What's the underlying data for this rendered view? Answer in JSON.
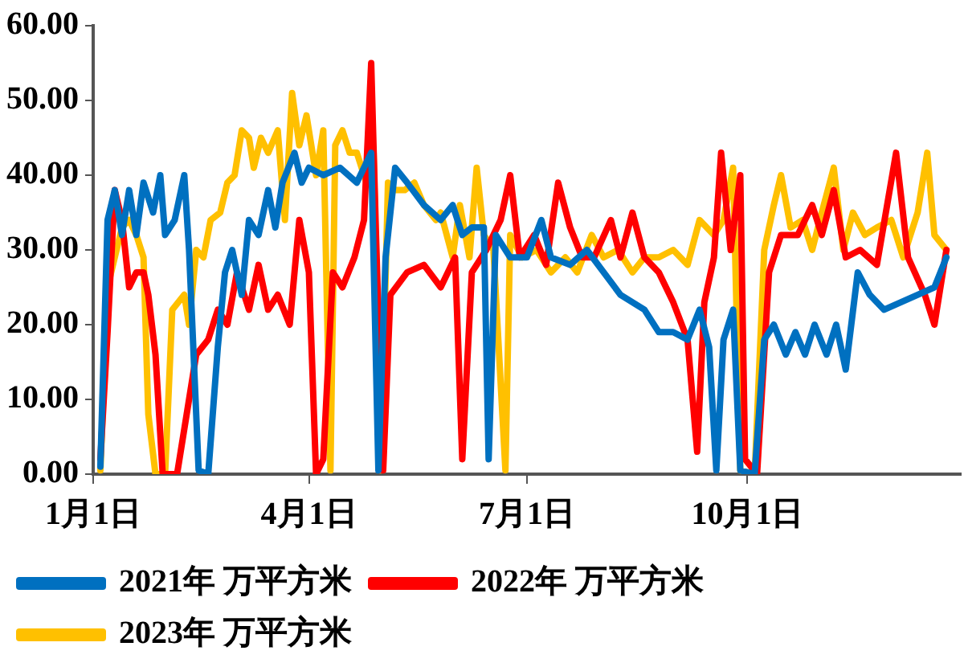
{
  "chart_data": {
    "type": "line",
    "xlim": [
      "--01-01",
      "--12-29"
    ],
    "xticks": [
      {
        "value": "--01-01",
        "label": "1月1日"
      },
      {
        "value": "--04-01",
        "label": "4月1日"
      },
      {
        "value": "--07-01",
        "label": "7月1日"
      },
      {
        "value": "--10-01",
        "label": "10月1日"
      }
    ],
    "ylim": [
      0,
      60
    ],
    "yticks": [
      {
        "value": 0,
        "label": "0.00"
      },
      {
        "value": 10,
        "label": "10.00"
      },
      {
        "value": 20,
        "label": "20.00"
      },
      {
        "value": 30,
        "label": "30.00"
      },
      {
        "value": 40,
        "label": "40.00"
      },
      {
        "value": 50,
        "label": "50.00"
      },
      {
        "value": 60,
        "label": "60.00"
      }
    ],
    "grid": false,
    "legend": "bottom",
    "marker": "none",
    "line_style": "solid",
    "series": [
      {
        "name": "2021年 万平方米",
        "color": "#0070c0",
        "x": [
          "--01-04",
          "--01-07",
          "--01-10",
          "--01-13",
          "--01-16",
          "--01-19",
          "--01-22",
          "--01-26",
          "--01-29",
          "--01-31",
          "--02-04",
          "--02-08",
          "--02-10",
          "--02-14",
          "--02-18",
          "--02-22",
          "--02-25",
          "--02-28",
          "--03-04",
          "--03-07",
          "--03-11",
          "--03-15",
          "--03-18",
          "--03-21",
          "--03-26",
          "--03-29",
          "--04-01",
          "--04-07",
          "--04-14",
          "--04-21",
          "--04-27",
          "--04-30",
          "--05-03",
          "--05-07",
          "--05-12",
          "--05-19",
          "--05-26",
          "--05-31",
          "--06-04",
          "--06-08",
          "--06-13",
          "--06-15",
          "--06-18",
          "--06-24",
          "--07-01",
          "--07-07",
          "--07-11",
          "--07-19",
          "--07-26",
          "--08-02",
          "--08-09",
          "--08-14",
          "--08-19",
          "--08-25",
          "--08-31",
          "--09-06",
          "--09-11",
          "--09-15",
          "--09-18",
          "--09-21",
          "--09-25",
          "--09-28",
          "--10-04",
          "--10-08",
          "--10-12",
          "--10-17",
          "--10-21",
          "--10-25",
          "--10-29",
          "--11-03",
          "--11-07",
          "--11-11",
          "--11-16",
          "--11-21",
          "--11-27",
          "--12-04",
          "--12-11",
          "--12-18",
          "--12-23"
        ],
        "values": [
          1,
          34,
          38,
          32,
          38,
          32,
          39,
          35,
          40,
          32,
          34,
          40,
          30,
          0.5,
          0,
          17,
          27,
          30,
          24,
          34,
          32,
          38,
          33,
          39,
          43,
          39,
          41,
          40,
          41,
          39,
          43,
          0.5,
          29,
          41,
          39,
          36,
          34,
          36,
          32,
          33,
          33,
          2,
          32,
          29,
          29,
          34,
          29,
          28,
          30,
          27,
          24,
          23,
          22,
          19,
          19,
          18,
          22,
          17,
          0.5,
          18,
          22,
          0.5,
          0,
          18,
          20,
          16,
          19,
          16,
          20,
          16,
          20,
          14,
          27,
          24,
          22,
          23,
          24,
          25,
          29
        ]
      },
      {
        "name": "2022年 万平方米",
        "color": "#ff0000",
        "x": [
          "--01-04",
          "--01-07",
          "--01-10",
          "--01-13",
          "--01-16",
          "--01-19",
          "--01-22",
          "--01-24",
          "--01-27",
          "--01-30",
          "--02-05",
          "--02-09",
          "--02-13",
          "--02-18",
          "--02-22",
          "--02-26",
          "--03-02",
          "--03-07",
          "--03-11",
          "--03-15",
          "--03-19",
          "--03-24",
          "--03-28",
          "--04-01",
          "--04-04",
          "--04-07",
          "--04-11",
          "--04-15",
          "--04-20",
          "--04-24",
          "--04-27",
          "--04-29",
          "--05-02",
          "--05-05",
          "--05-12",
          "--05-19",
          "--05-26",
          "--06-01",
          "--06-04",
          "--06-08",
          "--06-14",
          "--06-20",
          "--06-24",
          "--06-28",
          "--07-04",
          "--07-09",
          "--07-14",
          "--07-19",
          "--07-24",
          "--07-29",
          "--08-05",
          "--08-09",
          "--08-14",
          "--08-19",
          "--08-25",
          "--08-31",
          "--09-06",
          "--09-10",
          "--09-13",
          "--09-17",
          "--09-20",
          "--09-24",
          "--09-28",
          "--09-30",
          "--10-05",
          "--10-10",
          "--10-15",
          "--10-22",
          "--10-28",
          "--11-01",
          "--11-06",
          "--11-11",
          "--11-17",
          "--11-24",
          "--12-02",
          "--12-07",
          "--12-14",
          "--12-18",
          "--12-23"
        ],
        "values": [
          2,
          19,
          38,
          34,
          25,
          27,
          27,
          24,
          16,
          0,
          0,
          8,
          16,
          18,
          22,
          20,
          27,
          22,
          28,
          22,
          24,
          20,
          34,
          27,
          0,
          2,
          27,
          25,
          29,
          34,
          55,
          32,
          0.5,
          24,
          27,
          28,
          25,
          29,
          2,
          27,
          30,
          34,
          40,
          29,
          32,
          28,
          39,
          33,
          29,
          29,
          34,
          29,
          35,
          29,
          27,
          23,
          18,
          3,
          23,
          29,
          43,
          30,
          40,
          2,
          0,
          27,
          32,
          32,
          36,
          32,
          38,
          29,
          30,
          28,
          43,
          29,
          24,
          20,
          30
        ]
      },
      {
        "name": "2023年 万平方米",
        "color": "#ffc000",
        "x": [
          "--01-04",
          "--01-07",
          "--01-10",
          "--01-13",
          "--01-16",
          "--01-19",
          "--01-22",
          "--01-24",
          "--01-27",
          "--01-31",
          "--02-03",
          "--02-08",
          "--02-10",
          "--02-13",
          "--02-16",
          "--02-19",
          "--02-23",
          "--02-26",
          "--03-01",
          "--03-04",
          "--03-07",
          "--03-09",
          "--03-12",
          "--03-15",
          "--03-19",
          "--03-22",
          "--03-25",
          "--03-28",
          "--03-31",
          "--04-04",
          "--04-07",
          "--04-10",
          "--04-12",
          "--04-15",
          "--04-18",
          "--04-21",
          "--04-25",
          "--04-28",
          "--05-01",
          "--05-04",
          "--05-07",
          "--05-11",
          "--05-15",
          "--05-19",
          "--05-24",
          "--05-26",
          "--05-31",
          "--06-03",
          "--06-07",
          "--06-10",
          "--06-13",
          "--06-17",
          "--06-22",
          "--06-24",
          "--06-29",
          "--07-05",
          "--07-11",
          "--07-17",
          "--07-22",
          "--07-28",
          "--08-02",
          "--08-08",
          "--08-14",
          "--08-19",
          "--08-25",
          "--08-31",
          "--09-06",
          "--09-11",
          "--09-17",
          "--09-21",
          "--09-25",
          "--09-28",
          "--10-04",
          "--10-08",
          "--10-12",
          "--10-15",
          "--10-19",
          "--10-24",
          "--10-28",
          "--11-01",
          "--11-06",
          "--11-10",
          "--11-14",
          "--11-19",
          "--11-24",
          "--11-30",
          "--12-05",
          "--12-11",
          "--12-15",
          "--12-18",
          "--12-23"
        ],
        "values": [
          0.5,
          25,
          29,
          33,
          34,
          32,
          29,
          8,
          0,
          0,
          22,
          24,
          20,
          30,
          29,
          34,
          35,
          39,
          40,
          46,
          45,
          41,
          45,
          43,
          46,
          34,
          51,
          44,
          48,
          40,
          46,
          0.5,
          44,
          46,
          43,
          43,
          39,
          43,
          0.5,
          39,
          38,
          38,
          39,
          36,
          34,
          35,
          29,
          36,
          29,
          41,
          32,
          30,
          0.5,
          32,
          29,
          30,
          27,
          29,
          27,
          32,
          29,
          30,
          27,
          29,
          29,
          30,
          28,
          34,
          32,
          34,
          41,
          0.5,
          0,
          30,
          36,
          40,
          33,
          34,
          30,
          35,
          41,
          30,
          35,
          32,
          33,
          34,
          29,
          35,
          43,
          32,
          30
        ]
      }
    ]
  }
}
